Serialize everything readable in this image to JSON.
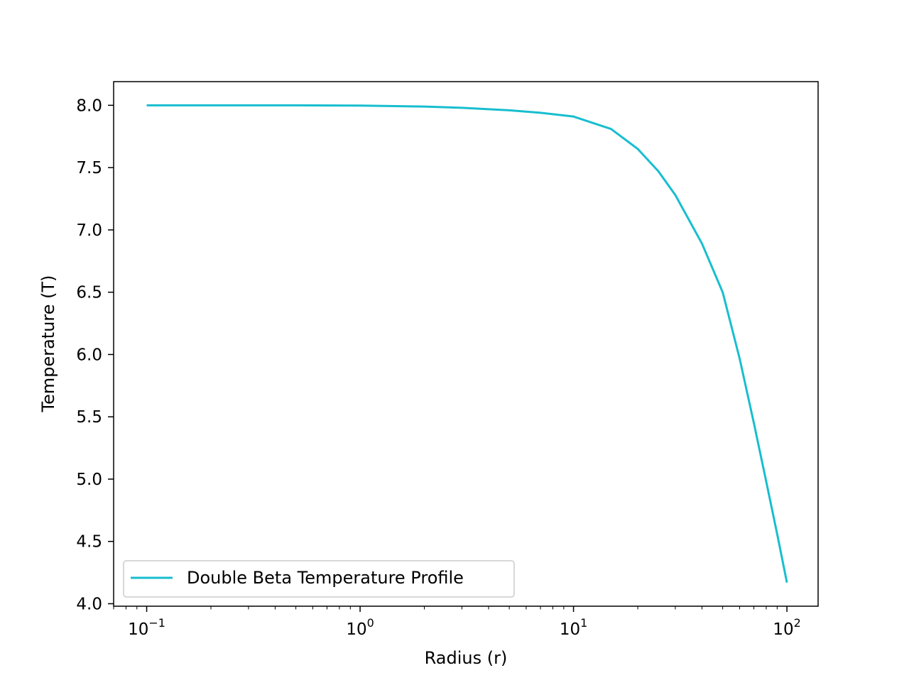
{
  "chart_data": {
    "type": "line",
    "title": "",
    "xlabel": "Radius (r)",
    "ylabel": "Temperature (T)",
    "xscale": "log",
    "xlim": [
      0.07,
      140
    ],
    "ylim": [
      3.98,
      8.19
    ],
    "x_ticks": [
      {
        "value": 0.1,
        "base": "10",
        "exp": "−1"
      },
      {
        "value": 1,
        "base": "10",
        "exp": "0"
      },
      {
        "value": 10,
        "base": "10",
        "exp": "1"
      },
      {
        "value": 100,
        "base": "10",
        "exp": "2"
      }
    ],
    "y_ticks": [
      {
        "value": 4.0,
        "label": "4.0"
      },
      {
        "value": 4.5,
        "label": "4.5"
      },
      {
        "value": 5.0,
        "label": "5.0"
      },
      {
        "value": 5.5,
        "label": "5.5"
      },
      {
        "value": 6.0,
        "label": "6.0"
      },
      {
        "value": 6.5,
        "label": "6.5"
      },
      {
        "value": 7.0,
        "label": "7.0"
      },
      {
        "value": 7.5,
        "label": "7.5"
      },
      {
        "value": 8.0,
        "label": "8.0"
      }
    ],
    "grid": false,
    "legend_position": "lower-left",
    "series": [
      {
        "name": "Double Beta Temperature Profile",
        "color": "#17becf",
        "x": [
          0.1,
          0.2,
          0.5,
          1,
          2,
          3,
          5,
          7,
          10,
          15,
          20,
          25,
          30,
          40,
          50,
          60,
          70,
          80,
          90,
          100
        ],
        "y": [
          8.0,
          8.0,
          8.0,
          7.998,
          7.99,
          7.98,
          7.96,
          7.94,
          7.91,
          7.81,
          7.65,
          7.47,
          7.28,
          6.89,
          6.5,
          5.97,
          5.45,
          4.98,
          4.56,
          4.17
        ]
      }
    ]
  }
}
